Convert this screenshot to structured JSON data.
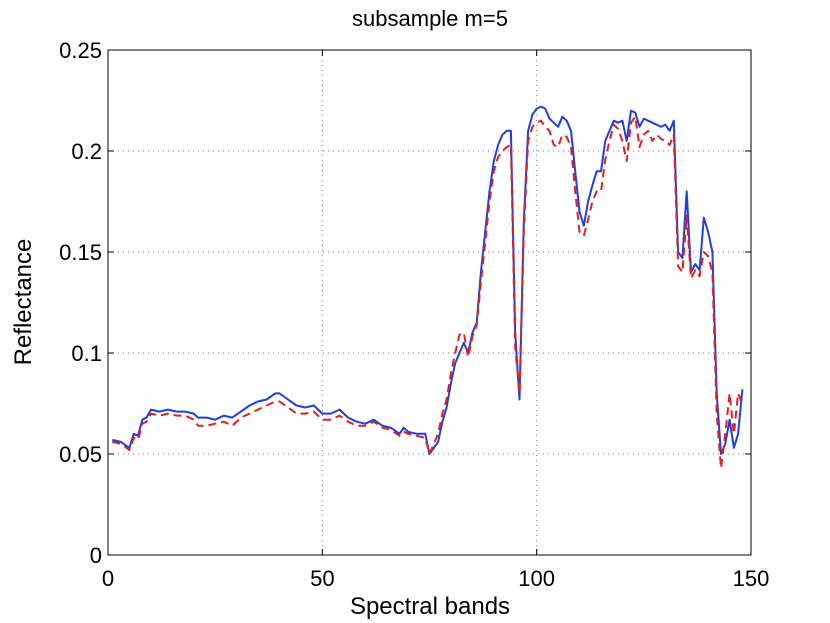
{
  "chart_data": {
    "type": "line",
    "title": "subsample m=5",
    "xlabel": "Spectral bands",
    "ylabel": "Reflectance",
    "xlim": [
      0,
      150
    ],
    "ylim": [
      0,
      0.25
    ],
    "xticks": [
      0,
      50,
      100,
      150
    ],
    "yticks": [
      0,
      0.05,
      0.1,
      0.15,
      0.2,
      0.25
    ],
    "xtick_labels": [
      "0",
      "50",
      "100",
      "150"
    ],
    "ytick_labels": [
      "0",
      "0.05",
      "0.1",
      "0.15",
      "0.2",
      "0.25"
    ],
    "grid": true,
    "series": [
      {
        "style": "solid",
        "color": "#1f3fe0",
        "points": [
          [
            1,
            0.057
          ],
          [
            3,
            0.056
          ],
          [
            5,
            0.053
          ],
          [
            6,
            0.06
          ],
          [
            7,
            0.059
          ],
          [
            8,
            0.067
          ],
          [
            9,
            0.068
          ],
          [
            10,
            0.072
          ],
          [
            12,
            0.071
          ],
          [
            14,
            0.072
          ],
          [
            16,
            0.071
          ],
          [
            18,
            0.071
          ],
          [
            20,
            0.07
          ],
          [
            21,
            0.068
          ],
          [
            23,
            0.068
          ],
          [
            25,
            0.067
          ],
          [
            27,
            0.069
          ],
          [
            29,
            0.068
          ],
          [
            31,
            0.071
          ],
          [
            33,
            0.074
          ],
          [
            35,
            0.076
          ],
          [
            37,
            0.077
          ],
          [
            39,
            0.08
          ],
          [
            40,
            0.08
          ],
          [
            42,
            0.077
          ],
          [
            44,
            0.074
          ],
          [
            46,
            0.073
          ],
          [
            48,
            0.074
          ],
          [
            50,
            0.07
          ],
          [
            52,
            0.07
          ],
          [
            54,
            0.072
          ],
          [
            56,
            0.068
          ],
          [
            58,
            0.066
          ],
          [
            60,
            0.065
          ],
          [
            62,
            0.067
          ],
          [
            64,
            0.064
          ],
          [
            66,
            0.063
          ],
          [
            68,
            0.06
          ],
          [
            69,
            0.063
          ],
          [
            70,
            0.061
          ],
          [
            72,
            0.06
          ],
          [
            74,
            0.06
          ],
          [
            75,
            0.05
          ],
          [
            77,
            0.056
          ],
          [
            78,
            0.066
          ],
          [
            79,
            0.073
          ],
          [
            80,
            0.085
          ],
          [
            81,
            0.095
          ],
          [
            82,
            0.1
          ],
          [
            83,
            0.105
          ],
          [
            84,
            0.1
          ],
          [
            85,
            0.11
          ],
          [
            86,
            0.115
          ],
          [
            87,
            0.14
          ],
          [
            88,
            0.16
          ],
          [
            89,
            0.18
          ],
          [
            90,
            0.195
          ],
          [
            91,
            0.203
          ],
          [
            92,
            0.208
          ],
          [
            93,
            0.21
          ],
          [
            94,
            0.21
          ],
          [
            95,
            0.11
          ],
          [
            96,
            0.077
          ],
          [
            97,
            0.165
          ],
          [
            98,
            0.21
          ],
          [
            99,
            0.218
          ],
          [
            100,
            0.221
          ],
          [
            101,
            0.222
          ],
          [
            102,
            0.221
          ],
          [
            103,
            0.216
          ],
          [
            104,
            0.214
          ],
          [
            105,
            0.212
          ],
          [
            106,
            0.217
          ],
          [
            107,
            0.215
          ],
          [
            108,
            0.21
          ],
          [
            109,
            0.19
          ],
          [
            110,
            0.17
          ],
          [
            111,
            0.163
          ],
          [
            112,
            0.175
          ],
          [
            113,
            0.183
          ],
          [
            114,
            0.19
          ],
          [
            115,
            0.19
          ],
          [
            116,
            0.205
          ],
          [
            117,
            0.21
          ],
          [
            118,
            0.215
          ],
          [
            119,
            0.214
          ],
          [
            120,
            0.215
          ],
          [
            121,
            0.205
          ],
          [
            122,
            0.22
          ],
          [
            123,
            0.219
          ],
          [
            124,
            0.212
          ],
          [
            125,
            0.216
          ],
          [
            126,
            0.215
          ],
          [
            127,
            0.214
          ],
          [
            128,
            0.213
          ],
          [
            129,
            0.212
          ],
          [
            130,
            0.213
          ],
          [
            131,
            0.21
          ],
          [
            132,
            0.215
          ],
          [
            133,
            0.15
          ],
          [
            134,
            0.147
          ],
          [
            135,
            0.18
          ],
          [
            136,
            0.14
          ],
          [
            137,
            0.144
          ],
          [
            138,
            0.141
          ],
          [
            139,
            0.167
          ],
          [
            140,
            0.16
          ],
          [
            141,
            0.15
          ],
          [
            142,
            0.08
          ],
          [
            143,
            0.05
          ],
          [
            144,
            0.055
          ],
          [
            145,
            0.067
          ],
          [
            146,
            0.053
          ],
          [
            147,
            0.06
          ],
          [
            148,
            0.082
          ]
        ]
      },
      {
        "style": "dashed",
        "color": "#e02020",
        "points": [
          [
            1,
            0.056
          ],
          [
            3,
            0.055
          ],
          [
            5,
            0.052
          ],
          [
            6,
            0.058
          ],
          [
            7,
            0.057
          ],
          [
            8,
            0.065
          ],
          [
            9,
            0.066
          ],
          [
            10,
            0.07
          ],
          [
            12,
            0.069
          ],
          [
            14,
            0.07
          ],
          [
            16,
            0.069
          ],
          [
            18,
            0.069
          ],
          [
            20,
            0.067
          ],
          [
            21,
            0.064
          ],
          [
            23,
            0.064
          ],
          [
            25,
            0.065
          ],
          [
            27,
            0.066
          ],
          [
            29,
            0.064
          ],
          [
            31,
            0.068
          ],
          [
            33,
            0.07
          ],
          [
            35,
            0.072
          ],
          [
            37,
            0.074
          ],
          [
            39,
            0.076
          ],
          [
            40,
            0.076
          ],
          [
            42,
            0.073
          ],
          [
            44,
            0.07
          ],
          [
            46,
            0.07
          ],
          [
            48,
            0.071
          ],
          [
            50,
            0.067
          ],
          [
            52,
            0.067
          ],
          [
            54,
            0.069
          ],
          [
            56,
            0.066
          ],
          [
            58,
            0.064
          ],
          [
            60,
            0.064
          ],
          [
            62,
            0.066
          ],
          [
            64,
            0.063
          ],
          [
            66,
            0.062
          ],
          [
            68,
            0.059
          ],
          [
            69,
            0.061
          ],
          [
            70,
            0.06
          ],
          [
            72,
            0.059
          ],
          [
            74,
            0.058
          ],
          [
            75,
            0.05
          ],
          [
            77,
            0.06
          ],
          [
            78,
            0.07
          ],
          [
            79,
            0.077
          ],
          [
            80,
            0.09
          ],
          [
            81,
            0.1
          ],
          [
            82,
            0.109
          ],
          [
            83,
            0.11
          ],
          [
            84,
            0.098
          ],
          [
            85,
            0.108
          ],
          [
            86,
            0.114
          ],
          [
            87,
            0.135
          ],
          [
            88,
            0.155
          ],
          [
            89,
            0.175
          ],
          [
            90,
            0.19
          ],
          [
            91,
            0.197
          ],
          [
            92,
            0.2
          ],
          [
            93,
            0.202
          ],
          [
            94,
            0.203
          ],
          [
            95,
            0.103
          ],
          [
            96,
            0.08
          ],
          [
            97,
            0.16
          ],
          [
            98,
            0.205
          ],
          [
            99,
            0.212
          ],
          [
            100,
            0.214
          ],
          [
            101,
            0.215
          ],
          [
            102,
            0.212
          ],
          [
            103,
            0.21
          ],
          [
            104,
            0.203
          ],
          [
            105,
            0.202
          ],
          [
            106,
            0.208
          ],
          [
            107,
            0.207
          ],
          [
            108,
            0.202
          ],
          [
            109,
            0.18
          ],
          [
            110,
            0.16
          ],
          [
            111,
            0.158
          ],
          [
            112,
            0.166
          ],
          [
            113,
            0.175
          ],
          [
            114,
            0.18
          ],
          [
            115,
            0.18
          ],
          [
            116,
            0.196
          ],
          [
            117,
            0.205
          ],
          [
            118,
            0.213
          ],
          [
            119,
            0.211
          ],
          [
            120,
            0.205
          ],
          [
            121,
            0.195
          ],
          [
            122,
            0.214
          ],
          [
            123,
            0.217
          ],
          [
            124,
            0.202
          ],
          [
            125,
            0.208
          ],
          [
            126,
            0.21
          ],
          [
            127,
            0.205
          ],
          [
            128,
            0.208
          ],
          [
            129,
            0.206
          ],
          [
            130,
            0.205
          ],
          [
            131,
            0.203
          ],
          [
            132,
            0.208
          ],
          [
            133,
            0.143
          ],
          [
            134,
            0.14
          ],
          [
            135,
            0.168
          ],
          [
            136,
            0.137
          ],
          [
            137,
            0.141
          ],
          [
            138,
            0.138
          ],
          [
            139,
            0.15
          ],
          [
            140,
            0.148
          ],
          [
            141,
            0.14
          ],
          [
            142,
            0.07
          ],
          [
            143,
            0.043
          ],
          [
            144,
            0.06
          ],
          [
            145,
            0.08
          ],
          [
            146,
            0.06
          ],
          [
            147,
            0.08
          ],
          [
            148,
            0.075
          ]
        ]
      }
    ]
  }
}
